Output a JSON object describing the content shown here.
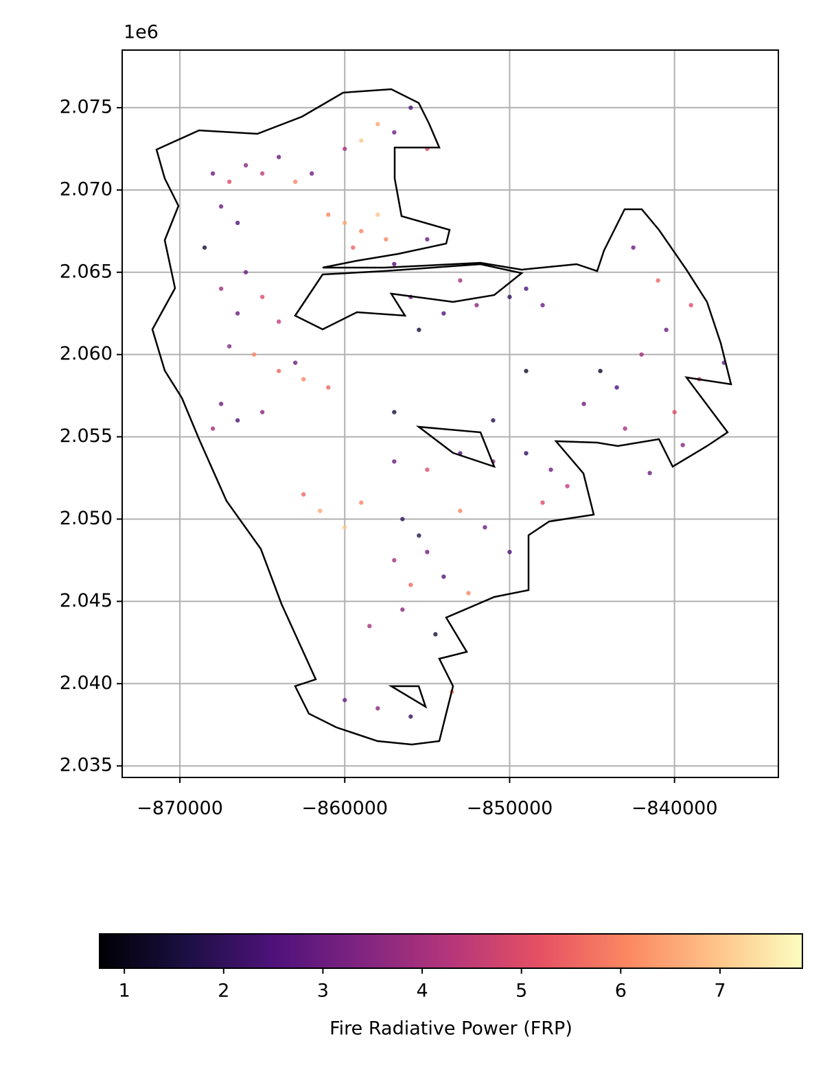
{
  "chart_data": {
    "type": "scatter",
    "y_offset_label": "1e6",
    "colorbar_label": "Fire Radiative Power (FRP)",
    "colormap": "magma",
    "clim": [
      0.75,
      7.83
    ],
    "cticks": [
      1,
      2,
      3,
      4,
      5,
      6,
      7
    ],
    "grid": true,
    "xlim": [
      -873500,
      -833700
    ],
    "ylim": [
      2034300,
      2078500
    ],
    "xticks": [
      {
        "value": -870000,
        "label": "−870000"
      },
      {
        "value": -860000,
        "label": "−860000"
      },
      {
        "value": -850000,
        "label": "−850000"
      },
      {
        "value": -840000,
        "label": "−840000"
      }
    ],
    "yticks": [
      {
        "value": 2035000,
        "label": "2.035"
      },
      {
        "value": 2040000,
        "label": "2.040"
      },
      {
        "value": 2045000,
        "label": "2.045"
      },
      {
        "value": 2050000,
        "label": "2.050"
      },
      {
        "value": 2055000,
        "label": "2.055"
      },
      {
        "value": 2060000,
        "label": "2.060"
      },
      {
        "value": 2065000,
        "label": "2.065"
      },
      {
        "value": 2070000,
        "label": "2.070"
      },
      {
        "value": 2075000,
        "label": "2.075"
      }
    ],
    "x": [
      -868000,
      -867000,
      -866000,
      -865000,
      -864000,
      -863000,
      -862000,
      -860000,
      -859000,
      -858000,
      -857000,
      -856000,
      -855000,
      -861000,
      -860000,
      -859000,
      -858000,
      -859500,
      -857500,
      -857000,
      -855000,
      -867500,
      -866500,
      -868500,
      -866000,
      -867500,
      -866500,
      -865000,
      -864000,
      -867000,
      -865500,
      -864000,
      -862500,
      -861000,
      -863000,
      -867500,
      -866500,
      -865000,
      -868000,
      -856000,
      -854000,
      -852000,
      -850000,
      -849000,
      -848000,
      -855500,
      -853000,
      -844500,
      -843500,
      -845500,
      -842000,
      -840500,
      -839000,
      -841000,
      -842500,
      -838500,
      -837000,
      -840000,
      -843000,
      -839500,
      -841500,
      -857000,
      -855000,
      -853000,
      -851000,
      -849000,
      -847500,
      -846500,
      -848000,
      -861500,
      -860000,
      -859000,
      -862500,
      -856500,
      -855500,
      -855000,
      -857000,
      -856000,
      -854000,
      -853000,
      -851500,
      -850000,
      -852500,
      -856500,
      -854500,
      -858500,
      -860000,
      -858000,
      -856000,
      -853500,
      -849000,
      -857000,
      -851000
    ],
    "y": [
      2071000,
      2070500,
      2071500,
      2071000,
      2072000,
      2070500,
      2071000,
      2072500,
      2073000,
      2074000,
      2073500,
      2075000,
      2072500,
      2068500,
      2068000,
      2067500,
      2068500,
      2066500,
      2067000,
      2065500,
      2067000,
      2069000,
      2068000,
      2066500,
      2065000,
      2064000,
      2062500,
      2063500,
      2062000,
      2060500,
      2060000,
      2059000,
      2058500,
      2058000,
      2059500,
      2057000,
      2056000,
      2056500,
      2055500,
      2063500,
      2062500,
      2063000,
      2063500,
      2064000,
      2063000,
      2061500,
      2064500,
      2059000,
      2058000,
      2057000,
      2060000,
      2061500,
      2063000,
      2064500,
      2066500,
      2058500,
      2059500,
      2056500,
      2055500,
      2054500,
      2052800,
      2053500,
      2053000,
      2054000,
      2053500,
      2054000,
      2053000,
      2052000,
      2051000,
      2050500,
      2049500,
      2051000,
      2051500,
      2050000,
      2049000,
      2048000,
      2047500,
      2046000,
      2046500,
      2050500,
      2049500,
      2048000,
      2045500,
      2044500,
      2043000,
      2043500,
      2039000,
      2038500,
      2038000,
      2039500,
      2059000,
      2056500,
      2056000
    ],
    "c": [
      3,
      5,
      3.5,
      4.5,
      3,
      6,
      3,
      4,
      7,
      6.5,
      3,
      2.5,
      5,
      6,
      6.5,
      6,
      7,
      5.5,
      6,
      2.5,
      3,
      3,
      2.5,
      1.5,
      3,
      4,
      3,
      5,
      4.5,
      3.5,
      6,
      5.5,
      6,
      5.5,
      3,
      3,
      2.5,
      3.5,
      4,
      3,
      2.5,
      3.5,
      2,
      2.5,
      3,
      1.5,
      4,
      1.2,
      2.5,
      3,
      4,
      3,
      5,
      5.5,
      3,
      4.5,
      3,
      5,
      4,
      3.5,
      3,
      3,
      5,
      2.5,
      3.5,
      2,
      3,
      4.5,
      5,
      6.5,
      7,
      6,
      5.5,
      2,
      1.8,
      3,
      4,
      5.5,
      2.5,
      6,
      3,
      2.5,
      6,
      3.5,
      1.5,
      4,
      3,
      3.5,
      2,
      6,
      1.2,
      1.5,
      1.8
    ]
  }
}
